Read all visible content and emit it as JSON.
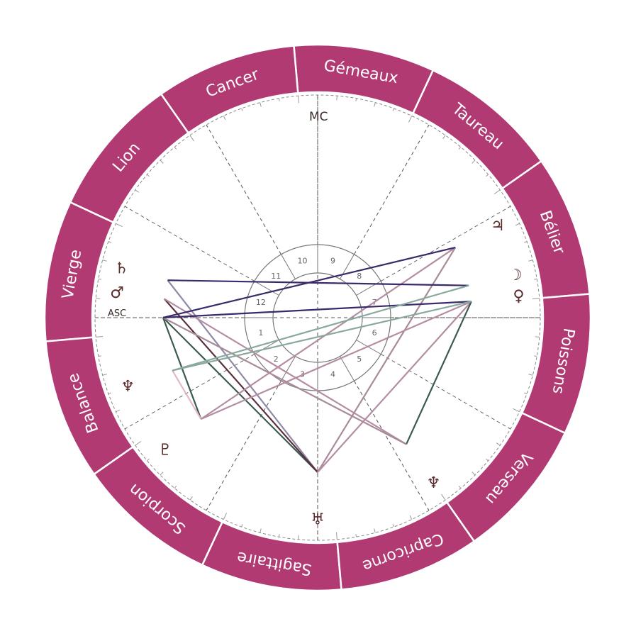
{
  "colors": {
    "zodiac_band": "#b13a72",
    "band_divider": "#ffffff",
    "cusp_line": "#555555",
    "house_ring": "#777777",
    "glyph": "#5a2a2a"
  },
  "zodiac_signs": [
    {
      "name": "Bélier",
      "sign_start_deg": 0
    },
    {
      "name": "Taureau",
      "sign_start_deg": 30
    },
    {
      "name": "Gémeaux",
      "sign_start_deg": 60
    },
    {
      "name": "Cancer",
      "sign_start_deg": 90
    },
    {
      "name": "Lion",
      "sign_start_deg": 120
    },
    {
      "name": "Vierge",
      "sign_start_deg": 150
    },
    {
      "name": "Balance",
      "sign_start_deg": 180
    },
    {
      "name": "Scorpion",
      "sign_start_deg": 210
    },
    {
      "name": "Sagittaire",
      "sign_start_deg": 240
    },
    {
      "name": "Capricorne",
      "sign_start_deg": 270
    },
    {
      "name": "Verseau",
      "sign_start_deg": 300
    },
    {
      "name": "Poissons",
      "sign_start_deg": 330
    }
  ],
  "houses": [
    {
      "label": "1",
      "cusp_deg": 0
    },
    {
      "label": "2",
      "cusp_deg": 30
    },
    {
      "label": "3",
      "cusp_deg": 60
    },
    {
      "label": "4",
      "cusp_deg": 90
    },
    {
      "label": "5",
      "cusp_deg": 120
    },
    {
      "label": "6",
      "cusp_deg": 150
    },
    {
      "label": "7",
      "cusp_deg": 180
    },
    {
      "label": "8",
      "cusp_deg": 210
    },
    {
      "label": "9",
      "cusp_deg": 240
    },
    {
      "label": "10",
      "cusp_deg": 270
    },
    {
      "label": "11",
      "cusp_deg": 300
    },
    {
      "label": "12",
      "cusp_deg": 330
    }
  ],
  "axes": {
    "asc_label": "ASC",
    "mc_label": "MC"
  },
  "planets": [
    {
      "key": "uranus",
      "glyph": "♅",
      "chart_deg": 270
    },
    {
      "key": "pluto",
      "glyph": "♇",
      "chart_deg": 221
    },
    {
      "key": "neptune_top",
      "glyph": "♆",
      "chart_deg": 305
    },
    {
      "key": "saturn",
      "glyph": "♄",
      "chart_deg": 166
    },
    {
      "key": "mars",
      "glyph": "♂",
      "chart_deg": 173
    },
    {
      "key": "moon",
      "glyph": "☽",
      "chart_deg": 12
    },
    {
      "key": "venus",
      "glyph": "♀",
      "chart_deg": 6
    },
    {
      "key": "neptune",
      "glyph": "♆",
      "chart_deg": 200
    },
    {
      "key": "jupiter",
      "glyph": "♃",
      "chart_deg": 27
    }
  ],
  "aspect_lines": [
    {
      "from": "mc",
      "to": "asc",
      "color": "#3b5a50"
    },
    {
      "from": "mc",
      "to": "saturn",
      "color": "#8e8aa6"
    },
    {
      "from": "mc",
      "to": "mars",
      "color": "#5b2f3d"
    },
    {
      "from": "mc",
      "to": "jupiter",
      "color": "#a88a99"
    },
    {
      "from": "mc",
      "to": "venus",
      "color": "#b48da2"
    },
    {
      "from": "pluto",
      "to": "asc",
      "color": "#3b5a50"
    },
    {
      "from": "pluto",
      "to": "neptune",
      "color": "#e2b7c9"
    },
    {
      "from": "pluto",
      "to": "venus",
      "color": "#b48da2"
    },
    {
      "from": "pluto",
      "to": "jupiter",
      "color": "#b48da2"
    },
    {
      "from": "neptune_top",
      "to": "venus",
      "color": "#3b5a50"
    },
    {
      "from": "neptune_top",
      "to": "mars",
      "color": "#b48da2"
    },
    {
      "from": "neptune_top",
      "to": "asc",
      "color": "#a88a99"
    },
    {
      "from": "saturn",
      "to": "moon",
      "color": "#3a2a6a"
    },
    {
      "from": "asc",
      "to": "venus",
      "color": "#3a2a6a"
    },
    {
      "from": "asc",
      "to": "jupiter",
      "color": "#3a2a6a"
    },
    {
      "from": "neptune",
      "to": "moon",
      "color": "#8aa89e"
    },
    {
      "from": "neptune",
      "to": "venus",
      "color": "#8aa89e"
    }
  ]
}
